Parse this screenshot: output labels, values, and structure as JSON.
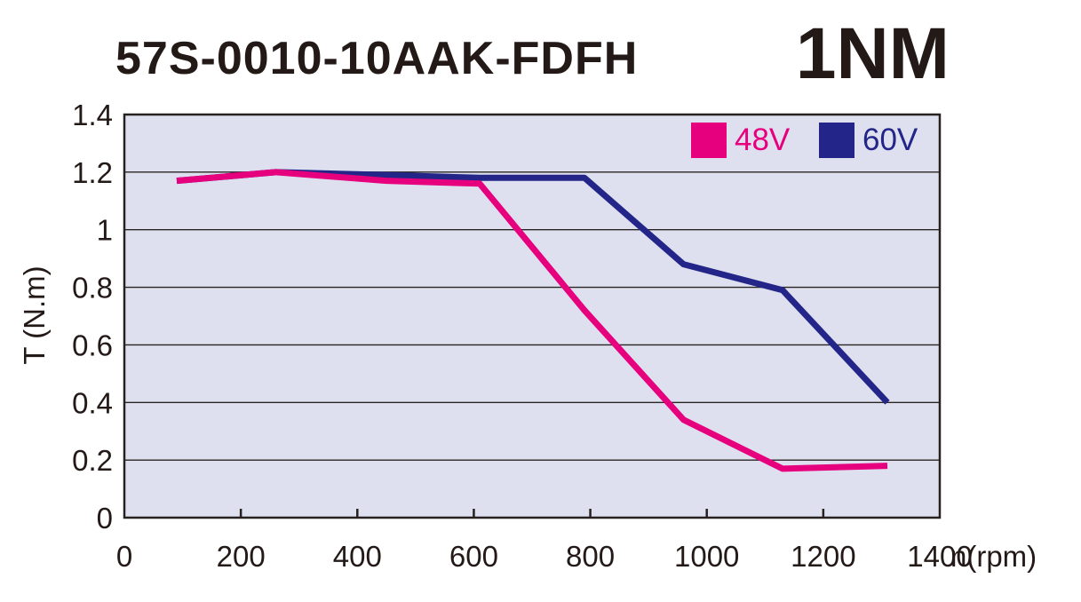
{
  "header": {
    "title": "57S-0010-10AAK-FDFH",
    "badge": "1NM"
  },
  "chart_data": {
    "type": "line",
    "title": "57S-0010-10AAK-FDFH",
    "badge": "1NM",
    "xlabel": "n(rpm)",
    "ylabel": "T (N.m)",
    "xlim": [
      0,
      1400
    ],
    "ylim": [
      0,
      1.4
    ],
    "x_ticks": [
      0,
      200,
      400,
      600,
      800,
      1000,
      1200,
      1400
    ],
    "y_ticks": [
      0,
      0.2,
      0.4,
      0.6,
      0.8,
      1,
      1.2,
      1.4
    ],
    "grid": "horizontal",
    "legend_position": "top-right-inside",
    "plot_bg": "#dee0f0",
    "axis_color": "#26201e",
    "gridline_color": "#2a2422",
    "series": [
      {
        "name": "48V",
        "color": "#e6007e",
        "x": [
          90,
          260,
          450,
          610,
          790,
          960,
          1130,
          1310
        ],
        "y": [
          1.17,
          1.2,
          1.17,
          1.16,
          0.72,
          0.34,
          0.17,
          0.18
        ]
      },
      {
        "name": "60V",
        "color": "#232688",
        "x": [
          90,
          260,
          450,
          610,
          790,
          960,
          1130,
          1310
        ],
        "y": [
          1.17,
          1.2,
          1.19,
          1.18,
          1.18,
          0.88,
          0.79,
          0.4
        ]
      }
    ]
  }
}
